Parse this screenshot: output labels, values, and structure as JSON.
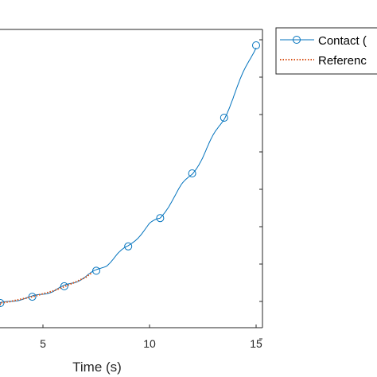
{
  "chart_data": {
    "type": "line",
    "xlabel": "Time (s)",
    "ylabel": "",
    "xlim": [
      -2,
      15.5
    ],
    "ylim": [
      0,
      10
    ],
    "x_ticks": [
      5,
      10,
      15
    ],
    "y_tick_count_visible": 9,
    "grid": false,
    "legend_position": "outside-right",
    "series": [
      {
        "name": "Contact (",
        "color": "#0072BD",
        "line": "solid",
        "marker": "circle",
        "x": [
          3,
          3.5,
          4,
          4.5,
          5,
          5.5,
          6,
          6.5,
          7,
          7.5,
          8,
          8.5,
          9,
          9.5,
          10,
          10.5,
          11,
          11.5,
          12,
          12.5,
          13,
          13.5,
          14,
          14.5,
          15
        ],
        "y": [
          0.0,
          0.05,
          0.12,
          0.19,
          0.28,
          0.37,
          0.51,
          0.65,
          0.8,
          0.98,
          1.17,
          1.48,
          1.72,
          2.05,
          2.38,
          2.58,
          3.08,
          3.55,
          3.94,
          4.45,
          5.06,
          5.63,
          6.37,
          7.1,
          7.83
        ],
        "marker_x": [
          3,
          4.5,
          6,
          7.5,
          9,
          10.5,
          12,
          13.5,
          15
        ],
        "marker_y": [
          0.0,
          0.19,
          0.51,
          0.98,
          1.72,
          2.58,
          3.94,
          5.63,
          7.83
        ]
      },
      {
        "name": "Referenc",
        "color": "#D95319",
        "line": "dotted",
        "x": [
          3,
          3.5,
          4,
          4.5,
          5,
          5.5,
          6,
          6.5,
          7,
          7.3
        ],
        "y": [
          0.0,
          0.05,
          0.12,
          0.19,
          0.28,
          0.37,
          0.5,
          0.63,
          0.78,
          0.92
        ]
      }
    ]
  }
}
